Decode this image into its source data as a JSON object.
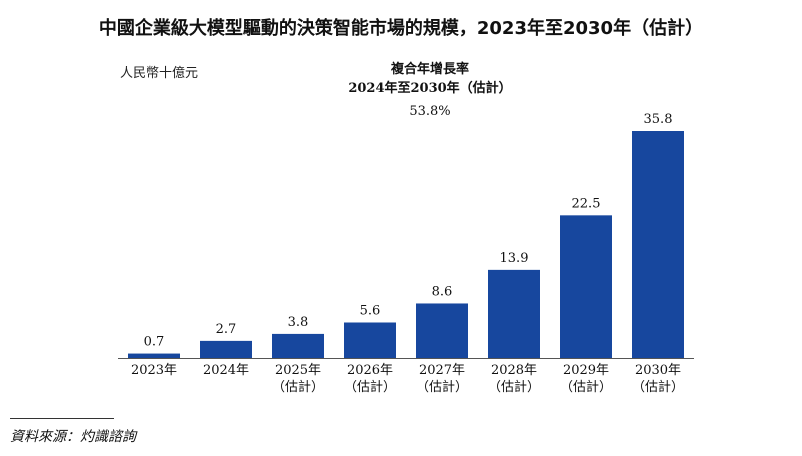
{
  "chart_data": {
    "type": "bar",
    "title": "中國企業級大模型驅動的決策智能市場的規模，2023年至2030年（估計）",
    "ylabel": "人民幣十億元",
    "categories": [
      [
        "2023年"
      ],
      [
        "2024年"
      ],
      [
        "2025年",
        "（估計）"
      ],
      [
        "2026年",
        "（估計）"
      ],
      [
        "2027年",
        "（估計）"
      ],
      [
        "2028年",
        "（估計）"
      ],
      [
        "2029年",
        "（估計）"
      ],
      [
        "2030年",
        "（估計）"
      ]
    ],
    "values": [
      0.7,
      2.7,
      3.8,
      5.6,
      8.6,
      13.9,
      22.5,
      35.8
    ],
    "value_labels": [
      "0.7",
      "2.7",
      "3.8",
      "5.6",
      "8.6",
      "13.9",
      "22.5",
      "35.8"
    ],
    "ylim": [
      0,
      35.8
    ],
    "bar_color": "#17479e",
    "grid": false,
    "annotation": {
      "label_line1": "複合年增長率",
      "label_line2": "2024年至2030年（估計）",
      "value": "53.8%"
    }
  },
  "source": "資料來源：灼識諮詢"
}
